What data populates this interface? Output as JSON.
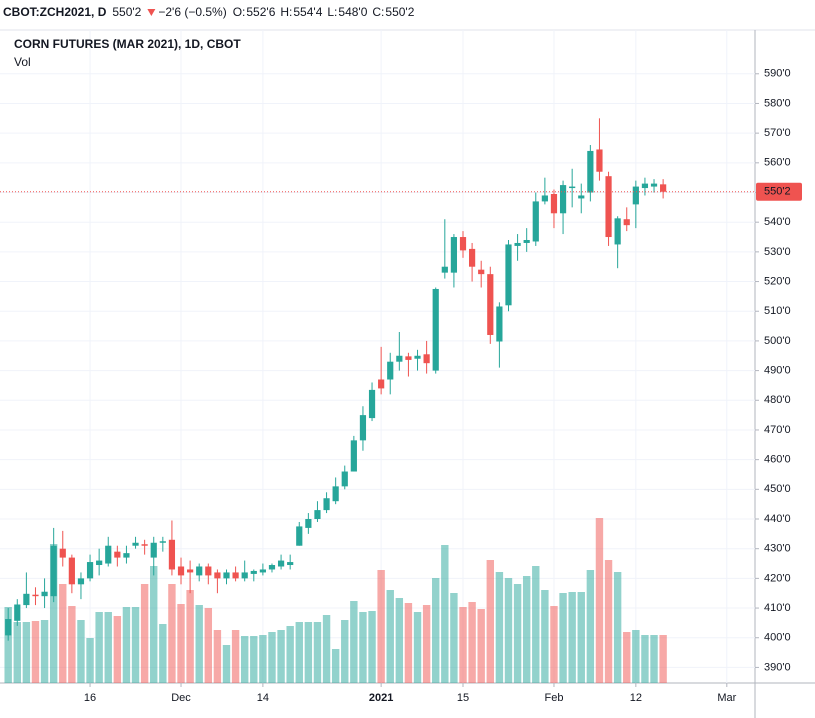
{
  "header": {
    "symbol": "CBOT:ZCH2021, D",
    "price": "550'2",
    "change": "−2'6 (−0.5%)",
    "ohlc": [
      {
        "label": "O:",
        "value": "552'6"
      },
      {
        "label": "H:",
        "value": "554'4"
      },
      {
        "label": "L:",
        "value": "548'0"
      },
      {
        "label": "C:",
        "value": "550'2"
      }
    ]
  },
  "chart_data": {
    "type": "candlestick",
    "title": "CORN FUTURES (MAR 2021), 1D, CBOT",
    "volume_label": "Vol",
    "up_color": "#26a69a",
    "down_color": "#ef5350",
    "open": [
      400.8,
      405.7,
      411,
      414.5,
      414,
      414,
      430,
      427,
      418,
      420,
      424.5,
      425,
      429,
      427,
      431,
      431.5,
      427,
      432,
      433,
      424,
      423,
      421,
      424,
      422,
      420,
      422,
      420,
      421.5,
      422,
      423,
      424,
      424.5,
      431,
      437,
      440,
      443,
      446,
      451,
      456,
      466.5,
      474,
      487,
      487,
      493,
      494.8,
      494,
      495.5,
      490,
      523,
      523,
      535,
      531,
      524,
      522.5,
      499.8,
      512,
      532,
      533,
      533.5,
      547,
      549.5,
      543,
      551.5,
      548,
      550,
      564.5,
      555.5,
      532.5,
      541,
      546,
      551.5,
      552,
      552.75
    ],
    "high": [
      410,
      413,
      422,
      417,
      420,
      437,
      436,
      428,
      422,
      428,
      430,
      434,
      431,
      431,
      434,
      433,
      434,
      434,
      439.5,
      427,
      426,
      425,
      425,
      423,
      423,
      424,
      426,
      423,
      425,
      425,
      428,
      428,
      439,
      442,
      446,
      449,
      454,
      458,
      468,
      478,
      486,
      498,
      496,
      503,
      496,
      497,
      500,
      518,
      541,
      536,
      537,
      533,
      527,
      525,
      513,
      534,
      536,
      538,
      550,
      555,
      551,
      554,
      558,
      553,
      566,
      575,
      557,
      542,
      545,
      554,
      555,
      554.5,
      554.5
    ],
    "low": [
      399,
      404,
      410,
      411,
      410,
      412,
      424,
      415,
      413,
      419,
      421,
      424,
      424,
      425,
      430,
      428,
      421,
      429,
      421,
      418,
      415,
      419,
      418,
      415,
      418,
      419,
      419,
      419,
      421,
      422,
      423,
      423,
      431,
      435,
      439,
      442,
      445,
      450,
      456,
      463,
      473,
      482,
      482,
      490,
      488,
      490,
      489,
      489,
      521,
      518,
      528,
      520,
      518,
      499,
      491,
      510,
      527,
      530,
      532,
      546,
      538,
      536,
      545,
      543,
      547,
      554,
      532,
      524.5,
      537,
      538,
      549,
      550,
      548
    ],
    "close": [
      406.3,
      411.2,
      414.8,
      414,
      415.5,
      431,
      427,
      418,
      420,
      425.5,
      426,
      431,
      427,
      428.5,
      432,
      431,
      432,
      432.5,
      423,
      421,
      422,
      424,
      421,
      420,
      422,
      420,
      422,
      422.5,
      423,
      424.5,
      426,
      425.5,
      437.5,
      440,
      443,
      447,
      451,
      456,
      466.5,
      475,
      483.5,
      484,
      493,
      495,
      493.6,
      495,
      492.5,
      517.5,
      525,
      535,
      530.5,
      525,
      522.5,
      502,
      511.6,
      532.5,
      533,
      534,
      547,
      549,
      543,
      552.5,
      552,
      549,
      564,
      557,
      535,
      541.3,
      539,
      552,
      553,
      553,
      550.25
    ],
    "volume": [
      76000,
      61000,
      61000,
      62000,
      63000,
      139000,
      99000,
      77000,
      63000,
      45000,
      71000,
      71000,
      67000,
      76000,
      76000,
      99000,
      117000,
      59000,
      99000,
      79000,
      93000,
      78000,
      75000,
      53000,
      38000,
      53000,
      47000,
      47000,
      48000,
      51000,
      53000,
      57000,
      61000,
      61000,
      61000,
      68000,
      34000,
      63000,
      82000,
      71000,
      72000,
      113000,
      93000,
      85000,
      80000,
      71000,
      78000,
      105000,
      138000,
      90000,
      76000,
      81000,
      74000,
      123000,
      111000,
      105000,
      99000,
      107000,
      117000,
      93000,
      77000,
      90000,
      91000,
      91000,
      113000,
      165000,
      123000,
      111000,
      51000,
      53000,
      48000,
      48000,
      48000
    ],
    "volume_lim": [
      0,
      300000
    ],
    "xlim": [
      -0.9,
      82.1
    ],
    "xticks": [
      {
        "value": 9,
        "label": "16"
      },
      {
        "value": 19,
        "label": "Dec"
      },
      {
        "value": 28,
        "label": "14"
      },
      {
        "value": 41,
        "label": "2021"
      },
      {
        "value": 50,
        "label": "15"
      },
      {
        "value": 60,
        "label": "Feb"
      },
      {
        "value": 69,
        "label": "12"
      },
      {
        "value": 79,
        "label": "Mar"
      }
    ],
    "ylim": [
      384.75,
      604.75
    ],
    "yticks": [
      {
        "value": 390,
        "label": "390'0"
      },
      {
        "value": 400,
        "label": "400'0"
      },
      {
        "value": 410,
        "label": "410'0"
      },
      {
        "value": 420,
        "label": "420'0"
      },
      {
        "value": 430,
        "label": "430'0"
      },
      {
        "value": 440,
        "label": "440'0"
      },
      {
        "value": 450,
        "label": "450'0"
      },
      {
        "value": 460,
        "label": "460'0"
      },
      {
        "value": 470,
        "label": "470'0"
      },
      {
        "value": 480,
        "label": "480'0"
      },
      {
        "value": 490,
        "label": "490'0"
      },
      {
        "value": 500,
        "label": "500'0"
      },
      {
        "value": 510,
        "label": "510'0"
      },
      {
        "value": 520,
        "label": "520'0"
      },
      {
        "value": 530,
        "label": "530'0"
      },
      {
        "value": 540,
        "label": "540'0"
      },
      {
        "value": 550,
        "label": "550'0"
      },
      {
        "value": 560,
        "label": "560'0"
      },
      {
        "value": 570,
        "label": "570'0"
      },
      {
        "value": 580,
        "label": "580'0"
      },
      {
        "value": 590,
        "label": "590'0"
      }
    ],
    "last_price": {
      "value": 550.25,
      "label": "550'2"
    },
    "grid": true
  }
}
